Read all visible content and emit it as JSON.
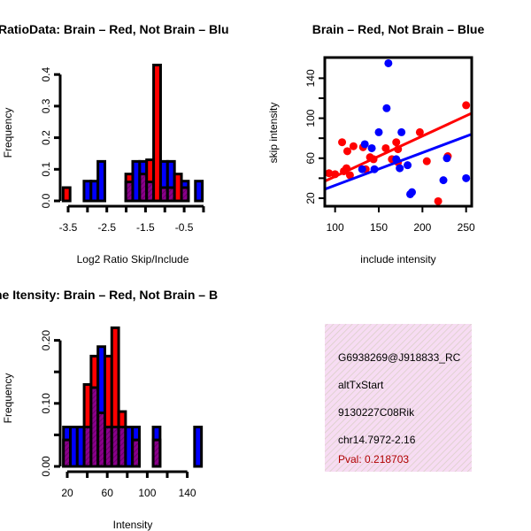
{
  "colors": {
    "red": "#ff0000",
    "blue": "#0000ff",
    "purple": "#8b008b",
    "pval": "#b00000",
    "box": "#f5d6f0"
  },
  "chart_data": [
    {
      "type": "bar",
      "title": "RatioData: Brain – Red, Not Brain – Blu",
      "xlabel": "Log2 Ratio Skip/Include",
      "ylabel": "Frequency",
      "xlim": [
        -3.5,
        0
      ],
      "ylim": [
        0,
        0.4
      ],
      "xticks": [
        -3.5,
        -3,
        -2.5,
        -2,
        -1.5,
        -1,
        -0.5,
        0
      ],
      "xtick_labels": [
        "-3.5",
        "-2.5",
        "-1.5",
        "-0.5"
      ],
      "xtick_label_values": [
        -3.5,
        -2.5,
        -1.5,
        -0.5
      ],
      "yticks": [
        0,
        0.1,
        0.2,
        0.3,
        0.4
      ],
      "ytick_labels": [
        "0.0",
        "0.1",
        "0.2",
        "0.3",
        "0.4"
      ],
      "breaks_start": -3.63,
      "bin_width": 0.18,
      "series": [
        {
          "name": "Brain",
          "color": "red",
          "values": [
            0.042,
            0,
            0,
            0,
            0,
            0,
            0,
            0,
            0,
            0.085,
            0,
            0.085,
            0.13,
            0.43,
            0.042,
            0.042,
            0.085,
            0.042,
            0,
            0
          ]
        },
        {
          "name": "Not Brain",
          "color": "blue",
          "values": [
            0,
            0,
            0,
            0.0625,
            0.0625,
            0.125,
            0,
            0,
            0,
            0.06,
            0.125,
            0.125,
            0.06,
            0,
            0.125,
            0.125,
            0,
            0.0625,
            0,
            0.0625
          ]
        }
      ]
    },
    {
      "type": "scatter",
      "title": "Brain – Red, Not Brain – Blue",
      "xlabel": "include intensity",
      "ylabel": "skip intensity",
      "xlim": [
        88.2,
        256.4
      ],
      "ylim": [
        12,
        160.7
      ],
      "xticks": [
        100,
        150,
        200,
        250
      ],
      "xtick_labels": [
        "100",
        "150",
        "200",
        "250"
      ],
      "yticks": [
        20,
        40,
        60,
        80,
        100,
        120,
        140
      ],
      "ytick_labels": [
        "20",
        "60",
        "100",
        "140"
      ],
      "ytick_label_values": [
        20,
        60,
        100,
        140
      ],
      "series": [
        {
          "name": "Brain",
          "color": "red",
          "points": [
            [
              93,
              45
            ],
            [
              100,
              44
            ],
            [
              108,
              76
            ],
            [
              110,
              47
            ],
            [
              113,
              50
            ],
            [
              114,
              67
            ],
            [
              117,
              43
            ],
            [
              121,
              72
            ],
            [
              132,
              71
            ],
            [
              135,
              49
            ],
            [
              140,
              61
            ],
            [
              144,
              59
            ],
            [
              158,
              70
            ],
            [
              165,
              59
            ],
            [
              170,
              76
            ],
            [
              172,
              69
            ],
            [
              172,
              56
            ],
            [
              197,
              86
            ],
            [
              205,
              57
            ],
            [
              218,
              17
            ],
            [
              229,
              62
            ],
            [
              250,
              113
            ]
          ],
          "fit": [
            [
              88.2,
              37
            ],
            [
              256.4,
              105
            ]
          ]
        },
        {
          "name": "Not Brain",
          "color": "blue",
          "points": [
            [
              131,
              49
            ],
            [
              134,
              74
            ],
            [
              142,
              70
            ],
            [
              145,
              49
            ],
            [
              150,
              86
            ],
            [
              159,
              110
            ],
            [
              161,
              155
            ],
            [
              170,
              59
            ],
            [
              174,
              50
            ],
            [
              176,
              86
            ],
            [
              183,
              53
            ],
            [
              186,
              24
            ],
            [
              188,
              26
            ],
            [
              224,
              38
            ],
            [
              228,
              60
            ],
            [
              250,
              40
            ]
          ],
          "fit": [
            [
              88.2,
              29
            ],
            [
              256.4,
              84
            ]
          ]
        }
      ]
    },
    {
      "type": "bar",
      "title": "ne Itensity: Brain – Red, Not Brain – B",
      "xlabel": "Intensity",
      "ylabel": "Frequency",
      "xlim": [
        20,
        140
      ],
      "ylim": [
        0,
        0.2
      ],
      "xticks": [
        20,
        40,
        60,
        80,
        100,
        120,
        140
      ],
      "xtick_labels": [
        "20",
        "60",
        "100",
        "140"
      ],
      "xtick_label_values": [
        20,
        60,
        100,
        140
      ],
      "yticks": [
        0,
        0.05,
        0.1,
        0.15,
        0.2
      ],
      "ytick_labels": [
        "0.00",
        "0.10",
        "0.20"
      ],
      "ytick_label_values": [
        0,
        0.1,
        0.2
      ],
      "breaks_start": 16.2,
      "bin_width": 6.9,
      "series": [
        {
          "name": "Brain",
          "color": "red",
          "values": [
            0.042,
            0,
            0,
            0.13,
            0.175,
            0.085,
            0.175,
            0.22,
            0.087,
            0,
            0.042,
            0,
            0,
            0.042,
            0,
            0,
            0,
            0,
            0,
            0
          ]
        },
        {
          "name": "Not Brain",
          "color": "blue",
          "values": [
            0.0625,
            0.0625,
            0.0625,
            0.0625,
            0.125,
            0.19,
            0.0625,
            0.0625,
            0.0625,
            0.0625,
            0.0625,
            0,
            0,
            0.0625,
            0,
            0,
            0,
            0,
            0,
            0.0625
          ]
        }
      ]
    }
  ],
  "info": {
    "lines": [
      "G6938269@J918833_RC",
      "altTxStart",
      "9130227C08Rik",
      "chr14.7972-2.16"
    ],
    "pval": "Pval: 0.218703"
  }
}
